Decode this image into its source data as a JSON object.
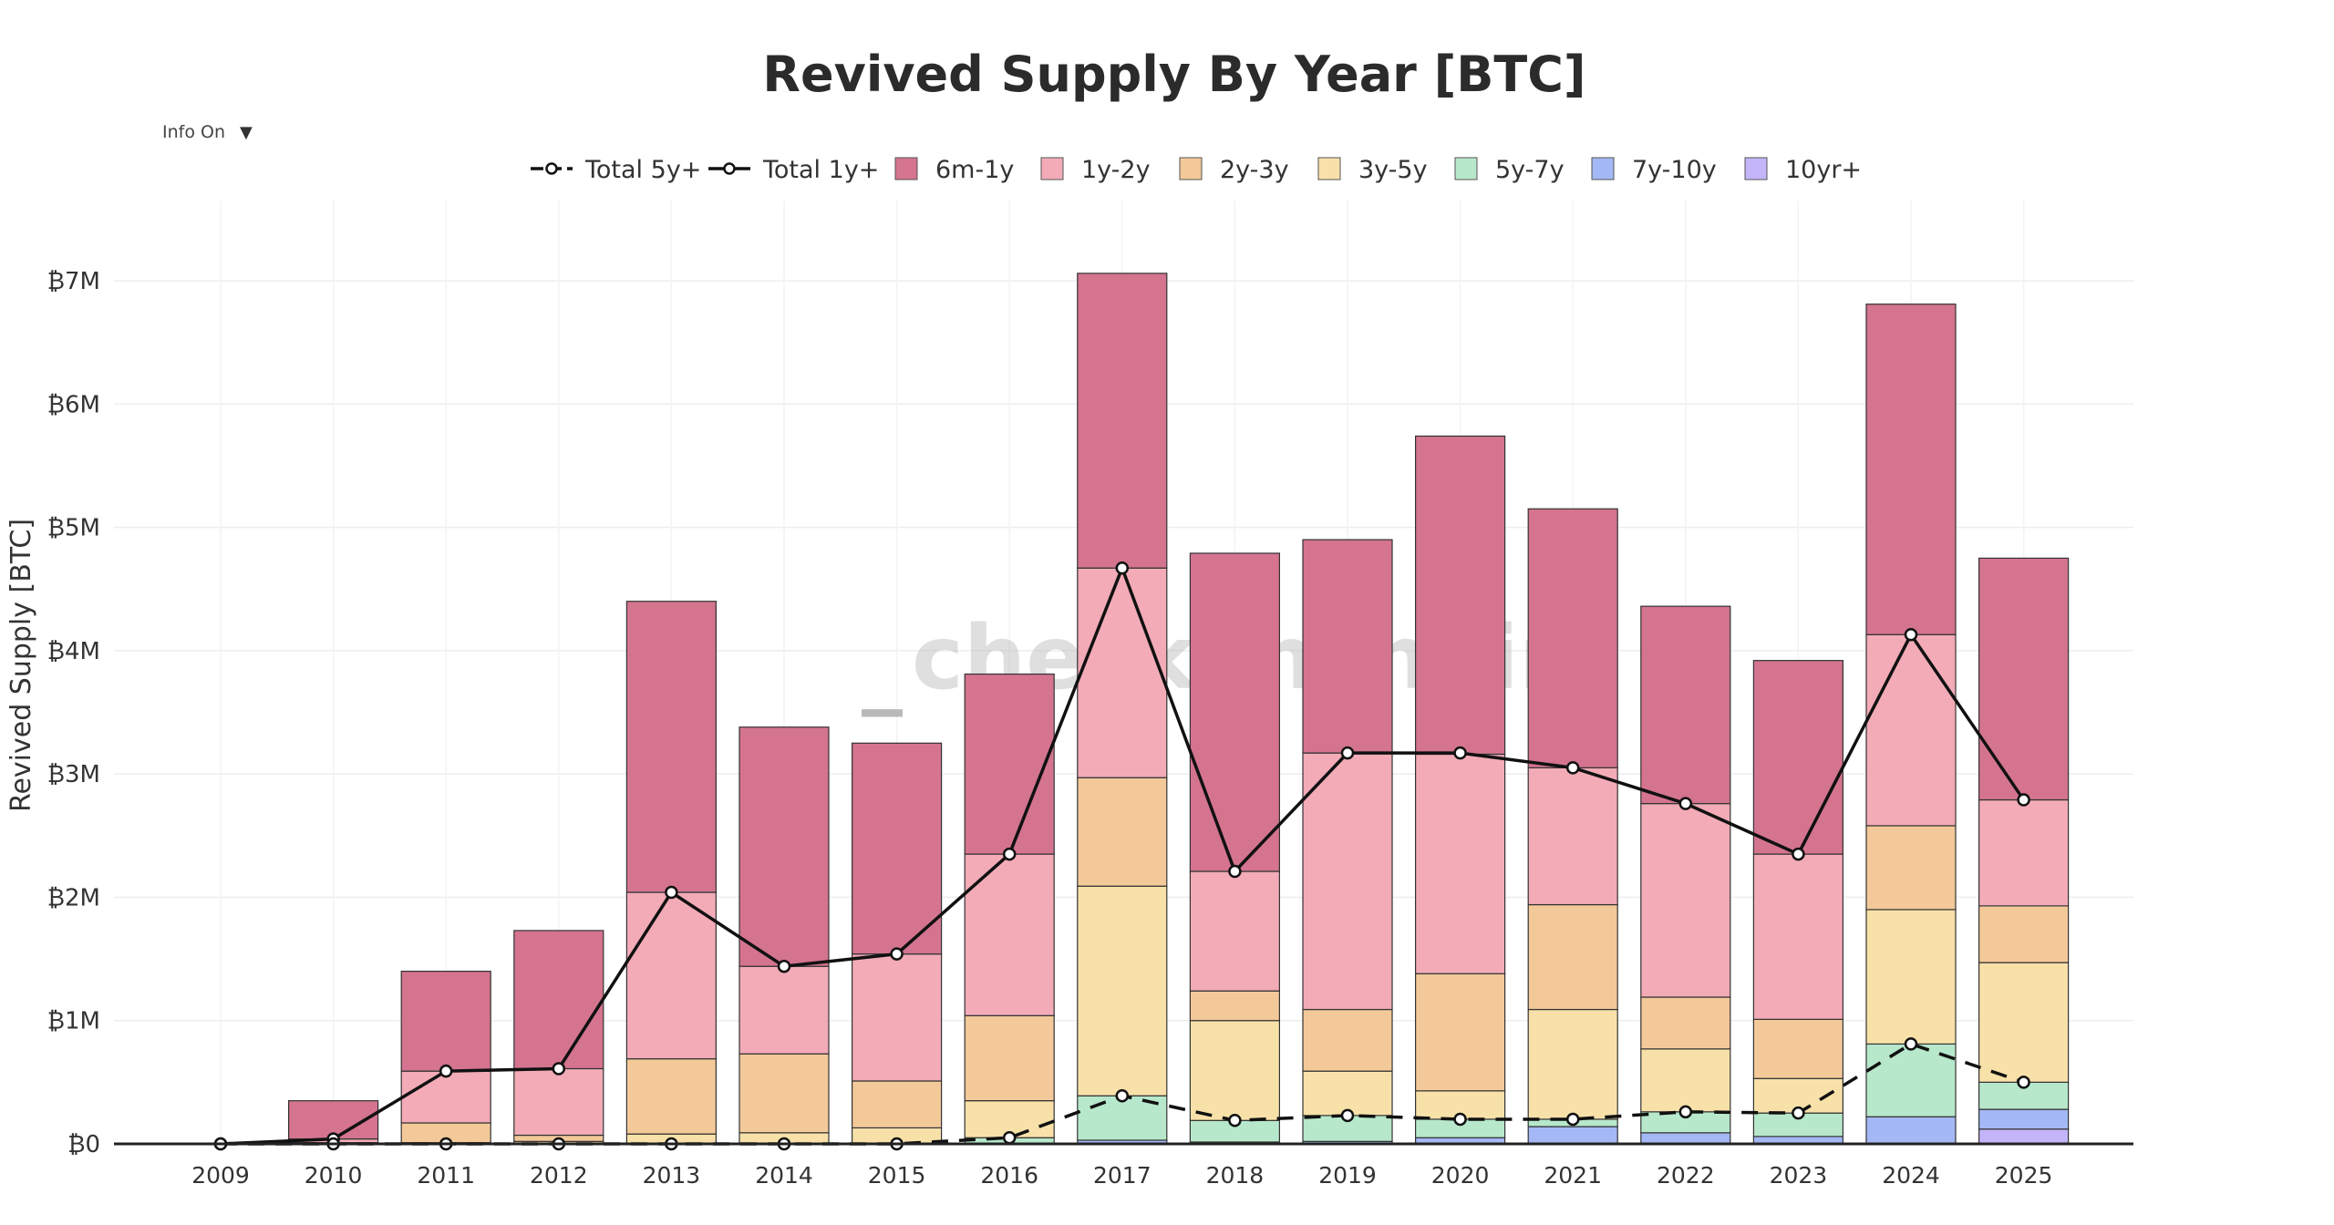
{
  "controls": {
    "info_label": "Info On",
    "info_arrow": "▼"
  },
  "watermark": {
    "prefix": "_",
    "text": "checkonchain"
  },
  "colors": {
    "6m-1y": "#d4748f",
    "1y-2y": "#f2abb7",
    "2y-3y": "#f3c999",
    "3y-5y": "#f8e1a9",
    "5y-7y": "#b7e8cb",
    "7y-10y": "#a3b8f4",
    "10yr+": "#c4b5fa",
    "line": "#111111",
    "watermark_accent": "#f9d9b5"
  },
  "chart_data": {
    "type": "bar",
    "title": "Revived Supply By Year [BTC]",
    "xlabel": "",
    "ylabel": "Revived Supply [BTC]",
    "ylim": [
      0,
      7000000
    ],
    "ytick_values": [
      0,
      1000000,
      2000000,
      3000000,
      4000000,
      5000000,
      6000000,
      7000000
    ],
    "ytick_labels": [
      "₿0",
      "₿1M",
      "₿2M",
      "₿3M",
      "₿4M",
      "₿5M",
      "₿6M",
      "₿7M"
    ],
    "grid": true,
    "legend_position": "top-center",
    "stacked": true,
    "categories": [
      "2009",
      "2010",
      "2011",
      "2012",
      "2013",
      "2014",
      "2015",
      "2016",
      "2017",
      "2018",
      "2019",
      "2020",
      "2021",
      "2022",
      "2023",
      "2024",
      "2025"
    ],
    "series": [
      {
        "name": "10yr+",
        "type": "bar",
        "values": [
          0,
          0,
          0,
          0,
          0,
          0,
          0,
          0,
          0,
          0,
          0,
          0,
          0,
          0,
          0,
          0,
          120000
        ]
      },
      {
        "name": "7y-10y",
        "type": "bar",
        "values": [
          0,
          0,
          0,
          0,
          0,
          0,
          0,
          0,
          30000,
          15000,
          20000,
          50000,
          140000,
          90000,
          60000,
          220000,
          160000
        ]
      },
      {
        "name": "5y-7y",
        "type": "bar",
        "values": [
          0,
          0,
          0,
          0,
          0,
          0,
          0,
          50000,
          360000,
          175000,
          210000,
          150000,
          60000,
          170000,
          190000,
          590000,
          220000
        ]
      },
      {
        "name": "3y-5y",
        "type": "bar",
        "values": [
          0,
          0,
          10000,
          20000,
          80000,
          90000,
          130000,
          300000,
          1700000,
          810000,
          360000,
          230000,
          890000,
          510000,
          280000,
          1090000,
          970000
        ]
      },
      {
        "name": "2y-3y",
        "type": "bar",
        "values": [
          0,
          10000,
          160000,
          50000,
          610000,
          640000,
          380000,
          690000,
          880000,
          240000,
          500000,
          950000,
          850000,
          420000,
          480000,
          680000,
          460000
        ]
      },
      {
        "name": "1y-2y",
        "type": "bar",
        "values": [
          0,
          30000,
          420000,
          540000,
          1350000,
          710000,
          1030000,
          1310000,
          1700000,
          970000,
          2080000,
          1780000,
          1110000,
          1570000,
          1340000,
          1550000,
          860000
        ]
      },
      {
        "name": "6m-1y",
        "type": "bar",
        "values": [
          0,
          310000,
          810000,
          1120000,
          2360000,
          1940000,
          1710000,
          1460000,
          2390000,
          2580000,
          1730000,
          2580000,
          2100000,
          1600000,
          1570000,
          2680000,
          1960000
        ]
      },
      {
        "name": "Total 1y+",
        "type": "line",
        "dash": "solid",
        "values": [
          0,
          40000,
          590000,
          610000,
          2040000,
          1440000,
          1540000,
          2350000,
          4670000,
          2210000,
          3170000,
          3170000,
          3050000,
          2760000,
          2350000,
          4130000,
          2790000
        ]
      },
      {
        "name": "Total 5y+",
        "type": "line",
        "dash": "dashed",
        "values": [
          0,
          0,
          0,
          0,
          0,
          0,
          0,
          50000,
          390000,
          190000,
          230000,
          200000,
          200000,
          260000,
          250000,
          810000,
          500000
        ]
      }
    ],
    "legend_order": [
      "Total 5y+",
      "Total 1y+",
      "6m-1y",
      "1y-2y",
      "2y-3y",
      "3y-5y",
      "5y-7y",
      "7y-10y",
      "10yr+"
    ]
  }
}
